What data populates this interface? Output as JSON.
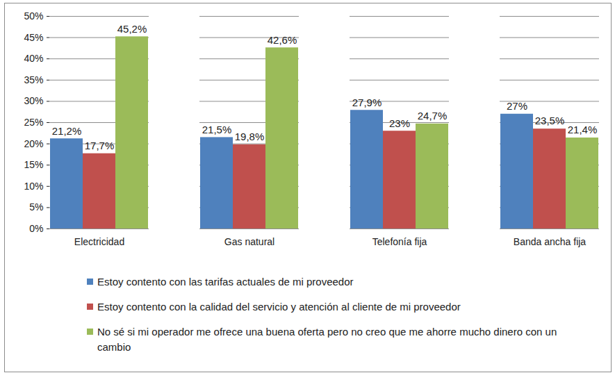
{
  "chart_data": {
    "type": "bar",
    "categories": [
      "Electricidad",
      "Gas natural",
      "Telefonía fija",
      "Banda ancha fija"
    ],
    "series": [
      {
        "name": "Estoy contento con las tarifas actuales de mi proveedor",
        "color": "#4F81BD",
        "values": [
          21.2,
          21.5,
          27.9,
          27
        ],
        "value_labels": [
          "21,2%",
          "21,5%",
          "27,9%",
          "27%"
        ]
      },
      {
        "name": "Estoy contento con la calidad del servicio y atención al cliente de mi proveedor",
        "color": "#C0504D",
        "values": [
          17.7,
          19.8,
          23,
          23.5
        ],
        "value_labels": [
          "17,7%",
          "19,8%",
          "23%",
          "23,5%"
        ]
      },
      {
        "name": "No sé si mi operador me ofrece una buena oferta pero no creo que me ahorre mucho dinero con un cambio",
        "color": "#9BBB59",
        "values": [
          45.2,
          42.6,
          24.7,
          21.4
        ],
        "value_labels": [
          "45,2%",
          "42,6%",
          "24,7%",
          "21,4%"
        ]
      }
    ],
    "ylim": [
      0,
      50
    ],
    "yticks": [
      {
        "value": 0,
        "label": "0%"
      },
      {
        "value": 5,
        "label": "5%"
      },
      {
        "value": 10,
        "label": "10%"
      },
      {
        "value": 15,
        "label": "15%"
      },
      {
        "value": 20,
        "label": "20%"
      },
      {
        "value": 25,
        "label": "25%"
      },
      {
        "value": 30,
        "label": "30%"
      },
      {
        "value": 35,
        "label": "35%"
      },
      {
        "value": 40,
        "label": "40%"
      },
      {
        "value": 45,
        "label": "45%"
      },
      {
        "value": 50,
        "label": "50%"
      }
    ],
    "grid": true,
    "data_labels": true,
    "legend": "bottom"
  }
}
